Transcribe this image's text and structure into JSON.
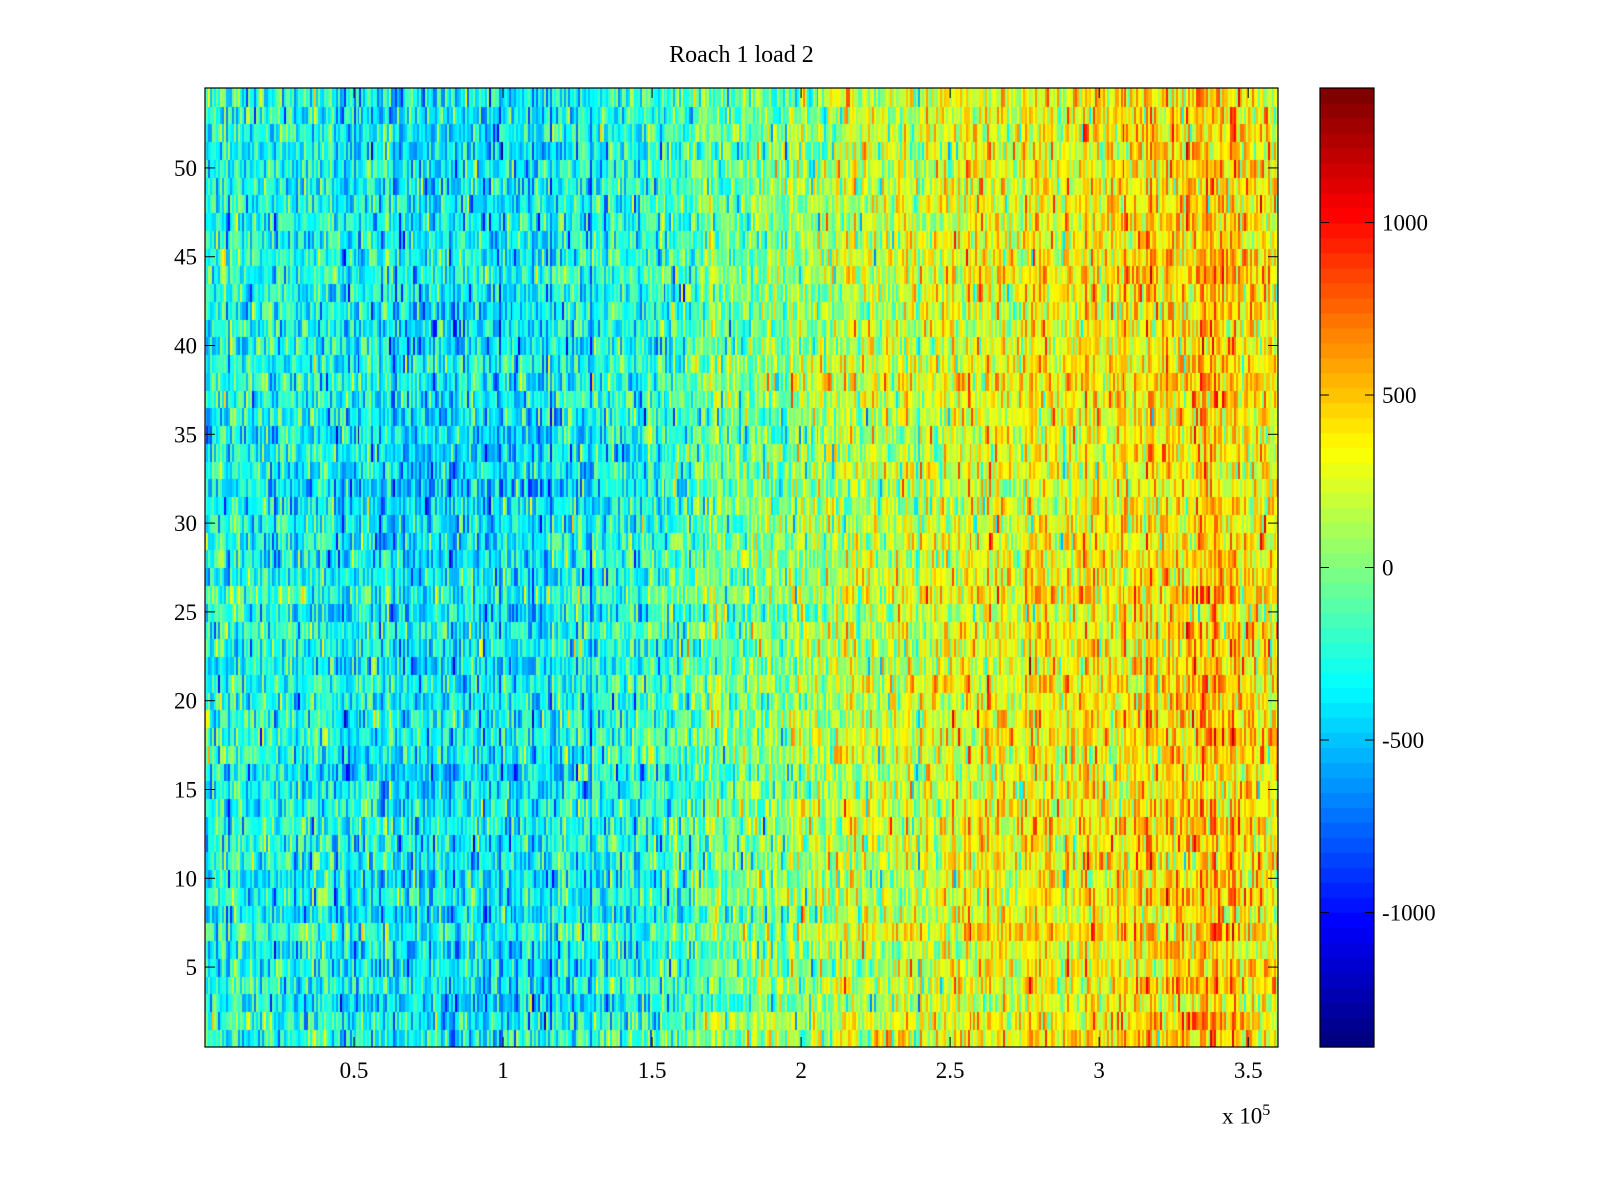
{
  "chart_data": {
    "type": "heatmap",
    "title": "Roach 1 load 2",
    "xlabel": "",
    "ylabel": "",
    "x_exponent_label": "x 10",
    "x_exponent": "5",
    "xlim": [
      0,
      360000
    ],
    "ylim": [
      0.5,
      54.5
    ],
    "rows": 54,
    "columns": 540,
    "x_ticks": [
      50000,
      100000,
      150000,
      200000,
      250000,
      300000,
      350000
    ],
    "x_tick_labels": [
      "0.5",
      "1",
      "1.5",
      "2",
      "2.5",
      "3",
      "3.5"
    ],
    "y_ticks": [
      5,
      10,
      15,
      20,
      25,
      30,
      35,
      40,
      45,
      50
    ],
    "y_tick_labels": [
      "5",
      "10",
      "15",
      "20",
      "25",
      "30",
      "35",
      "40",
      "45",
      "50"
    ],
    "colormap": "jet",
    "colormap_levels": 64,
    "clim": [
      -1390,
      1390
    ],
    "colorbar_ticks": [
      -1000,
      -500,
      0,
      500,
      1000
    ],
    "colorbar_tick_labels": [
      "-1000",
      "-500",
      "0",
      "500",
      "1000"
    ],
    "colorbar_location": "right",
    "approx_column_mean_profile": {
      "x": [
        0,
        50000,
        100000,
        150000,
        200000,
        250000,
        300000,
        340000,
        360000
      ],
      "mean": [
        -250,
        -330,
        -400,
        -230,
        80,
        280,
        350,
        480,
        320
      ]
    },
    "approx_noise_std": 260,
    "grid": false
  }
}
